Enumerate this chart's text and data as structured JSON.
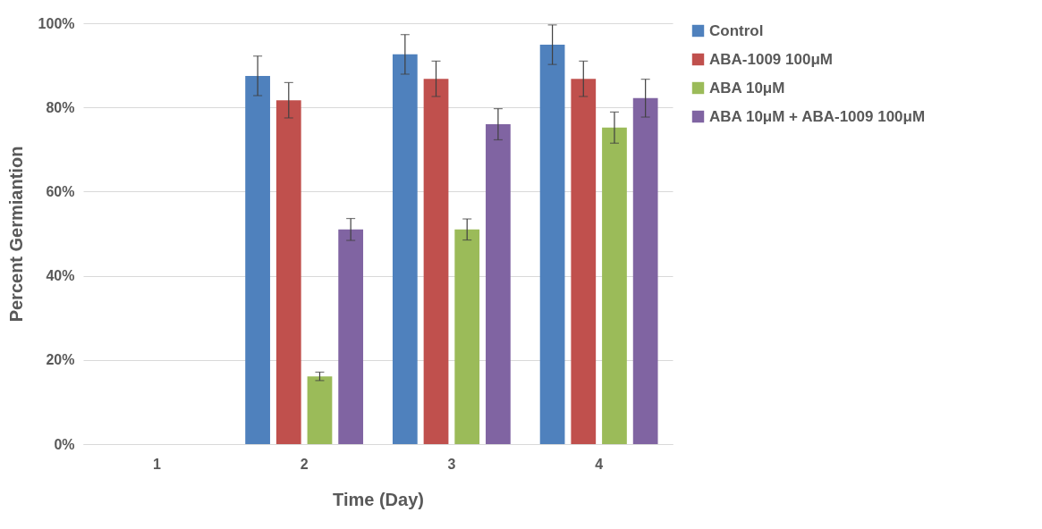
{
  "chart_data": {
    "type": "bar",
    "xlabel": "Time (Day)",
    "ylabel": "Percent Germiantion",
    "categories": [
      "1",
      "2",
      "3",
      "4"
    ],
    "series": [
      {
        "name": "Control",
        "color": "#4f81bd",
        "values": [
          0,
          87.5,
          92.6,
          94.9
        ],
        "errors": [
          null,
          4.7,
          4.7,
          4.7
        ]
      },
      {
        "name": "ABA-1009 100μM",
        "color": "#c0504d",
        "values": [
          0,
          81.7,
          86.8,
          86.8
        ],
        "errors": [
          null,
          4.2,
          4.2,
          4.2
        ]
      },
      {
        "name": "ABA 10μM",
        "color": "#9bbb59",
        "values": [
          0,
          16.1,
          51,
          75.2
        ],
        "errors": [
          null,
          1,
          2.5,
          3.7
        ]
      },
      {
        "name": "ABA 10μM + ABA-1009 100μM",
        "color": "#8064a2",
        "values": [
          0,
          51,
          76,
          82.2
        ],
        "errors": [
          null,
          2.6,
          3.7,
          4.5
        ]
      }
    ],
    "ylim": [
      0,
      100
    ],
    "yticks": [
      {
        "value": 0,
        "label": "0%"
      },
      {
        "value": 20,
        "label": "20%"
      },
      {
        "value": 40,
        "label": "40%"
      },
      {
        "value": 60,
        "label": "60%"
      },
      {
        "value": 80,
        "label": "80%"
      },
      {
        "value": 100,
        "label": "100%"
      }
    ],
    "grid": "y",
    "legend": "right"
  }
}
